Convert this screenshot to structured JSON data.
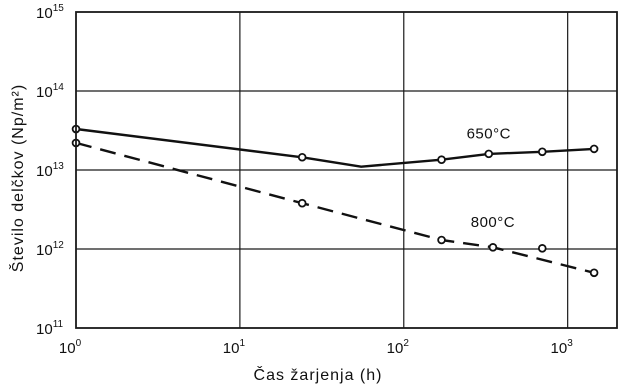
{
  "chart_data": {
    "type": "line",
    "title": "",
    "xlabel": "Čas žarjenja (h)",
    "ylabel": "Število delčkov (Np/m²)",
    "x_scale": "log",
    "y_scale": "log",
    "xlim": [
      1,
      2000
    ],
    "ylim": [
      100000000000.0,
      1000000000000000.0
    ],
    "grid": true,
    "x_ticks": [
      {
        "value": 1,
        "base": "10",
        "exp": "0"
      },
      {
        "value": 10,
        "base": "10",
        "exp": "1"
      },
      {
        "value": 100,
        "base": "10",
        "exp": "2"
      },
      {
        "value": 1000,
        "base": "10",
        "exp": "3"
      }
    ],
    "y_ticks": [
      {
        "value": 100000000000.0,
        "base": "10",
        "exp": "11"
      },
      {
        "value": 1000000000000.0,
        "base": "10",
        "exp": "12"
      },
      {
        "value": 10000000000000.0,
        "base": "10",
        "exp": "13"
      },
      {
        "value": 100000000000000.0,
        "base": "10",
        "exp": "14"
      },
      {
        "value": 1000000000000000.0,
        "base": "10",
        "exp": "15"
      }
    ],
    "series": [
      {
        "name": "650°C",
        "style": "solid",
        "line": [
          [
            1,
            33000000000000.0
          ],
          [
            24,
            14500000000000.0
          ],
          [
            55,
            11000000000000.0
          ],
          [
            170,
            13500000000000.0
          ],
          [
            330,
            16000000000000.0
          ],
          [
            700,
            17000000000000.0
          ],
          [
            1450,
            18500000000000.0
          ]
        ],
        "markers": [
          [
            1,
            33000000000000.0
          ],
          [
            24,
            14500000000000.0
          ],
          [
            170,
            13500000000000.0
          ],
          [
            330,
            16000000000000.0
          ],
          [
            700,
            17000000000000.0
          ],
          [
            1450,
            18500000000000.0
          ]
        ],
        "label_at": [
          330,
          25000000000000.0
        ]
      },
      {
        "name": "800°C",
        "style": "dashed",
        "line": [
          [
            1,
            22000000000000.0
          ],
          [
            24,
            3800000000000.0
          ],
          [
            170,
            1300000000000.0
          ],
          [
            350,
            1050000000000.0
          ],
          [
            1450,
            500000000000.0
          ]
        ],
        "markers": [
          [
            1,
            22000000000000.0
          ],
          [
            24,
            3800000000000.0
          ],
          [
            170,
            1300000000000.0
          ],
          [
            350,
            1050000000000.0
          ],
          [
            700,
            1020000000000.0
          ],
          [
            1450,
            500000000000.0
          ]
        ],
        "label_at": [
          350,
          1900000000000.0
        ]
      }
    ]
  }
}
